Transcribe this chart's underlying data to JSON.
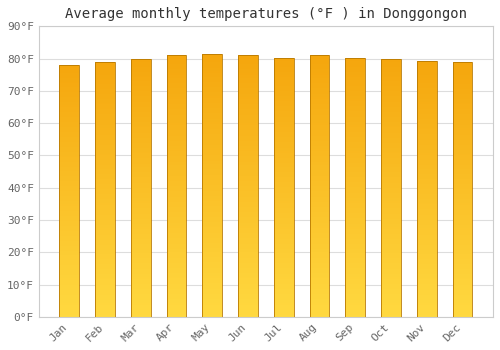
{
  "title": "Average monthly temperatures (°F ) in Donggongon",
  "months": [
    "Jan",
    "Feb",
    "Mar",
    "Apr",
    "May",
    "Jun",
    "Jul",
    "Aug",
    "Sep",
    "Oct",
    "Nov",
    "Dec"
  ],
  "values": [
    78.0,
    79.0,
    80.0,
    81.0,
    81.5,
    81.0,
    80.2,
    81.0,
    80.2,
    80.0,
    79.2,
    79.0
  ],
  "ylim": [
    0,
    90
  ],
  "yticks": [
    0,
    10,
    20,
    30,
    40,
    50,
    60,
    70,
    80,
    90
  ],
  "ytick_labels": [
    "0°F",
    "10°F",
    "20°F",
    "30°F",
    "40°F",
    "50°F",
    "60°F",
    "70°F",
    "80°F",
    "90°F"
  ],
  "bar_color_top": "#F5A800",
  "bar_color_bottom": "#FFD040",
  "bar_edge_color": "#B87800",
  "background_color": "#FFFFFF",
  "plot_bg_color": "#FFFFFF",
  "grid_color": "#DDDDDD",
  "title_fontsize": 10,
  "tick_fontsize": 8,
  "font_family": "monospace",
  "tick_color": "#666666",
  "title_color": "#333333"
}
